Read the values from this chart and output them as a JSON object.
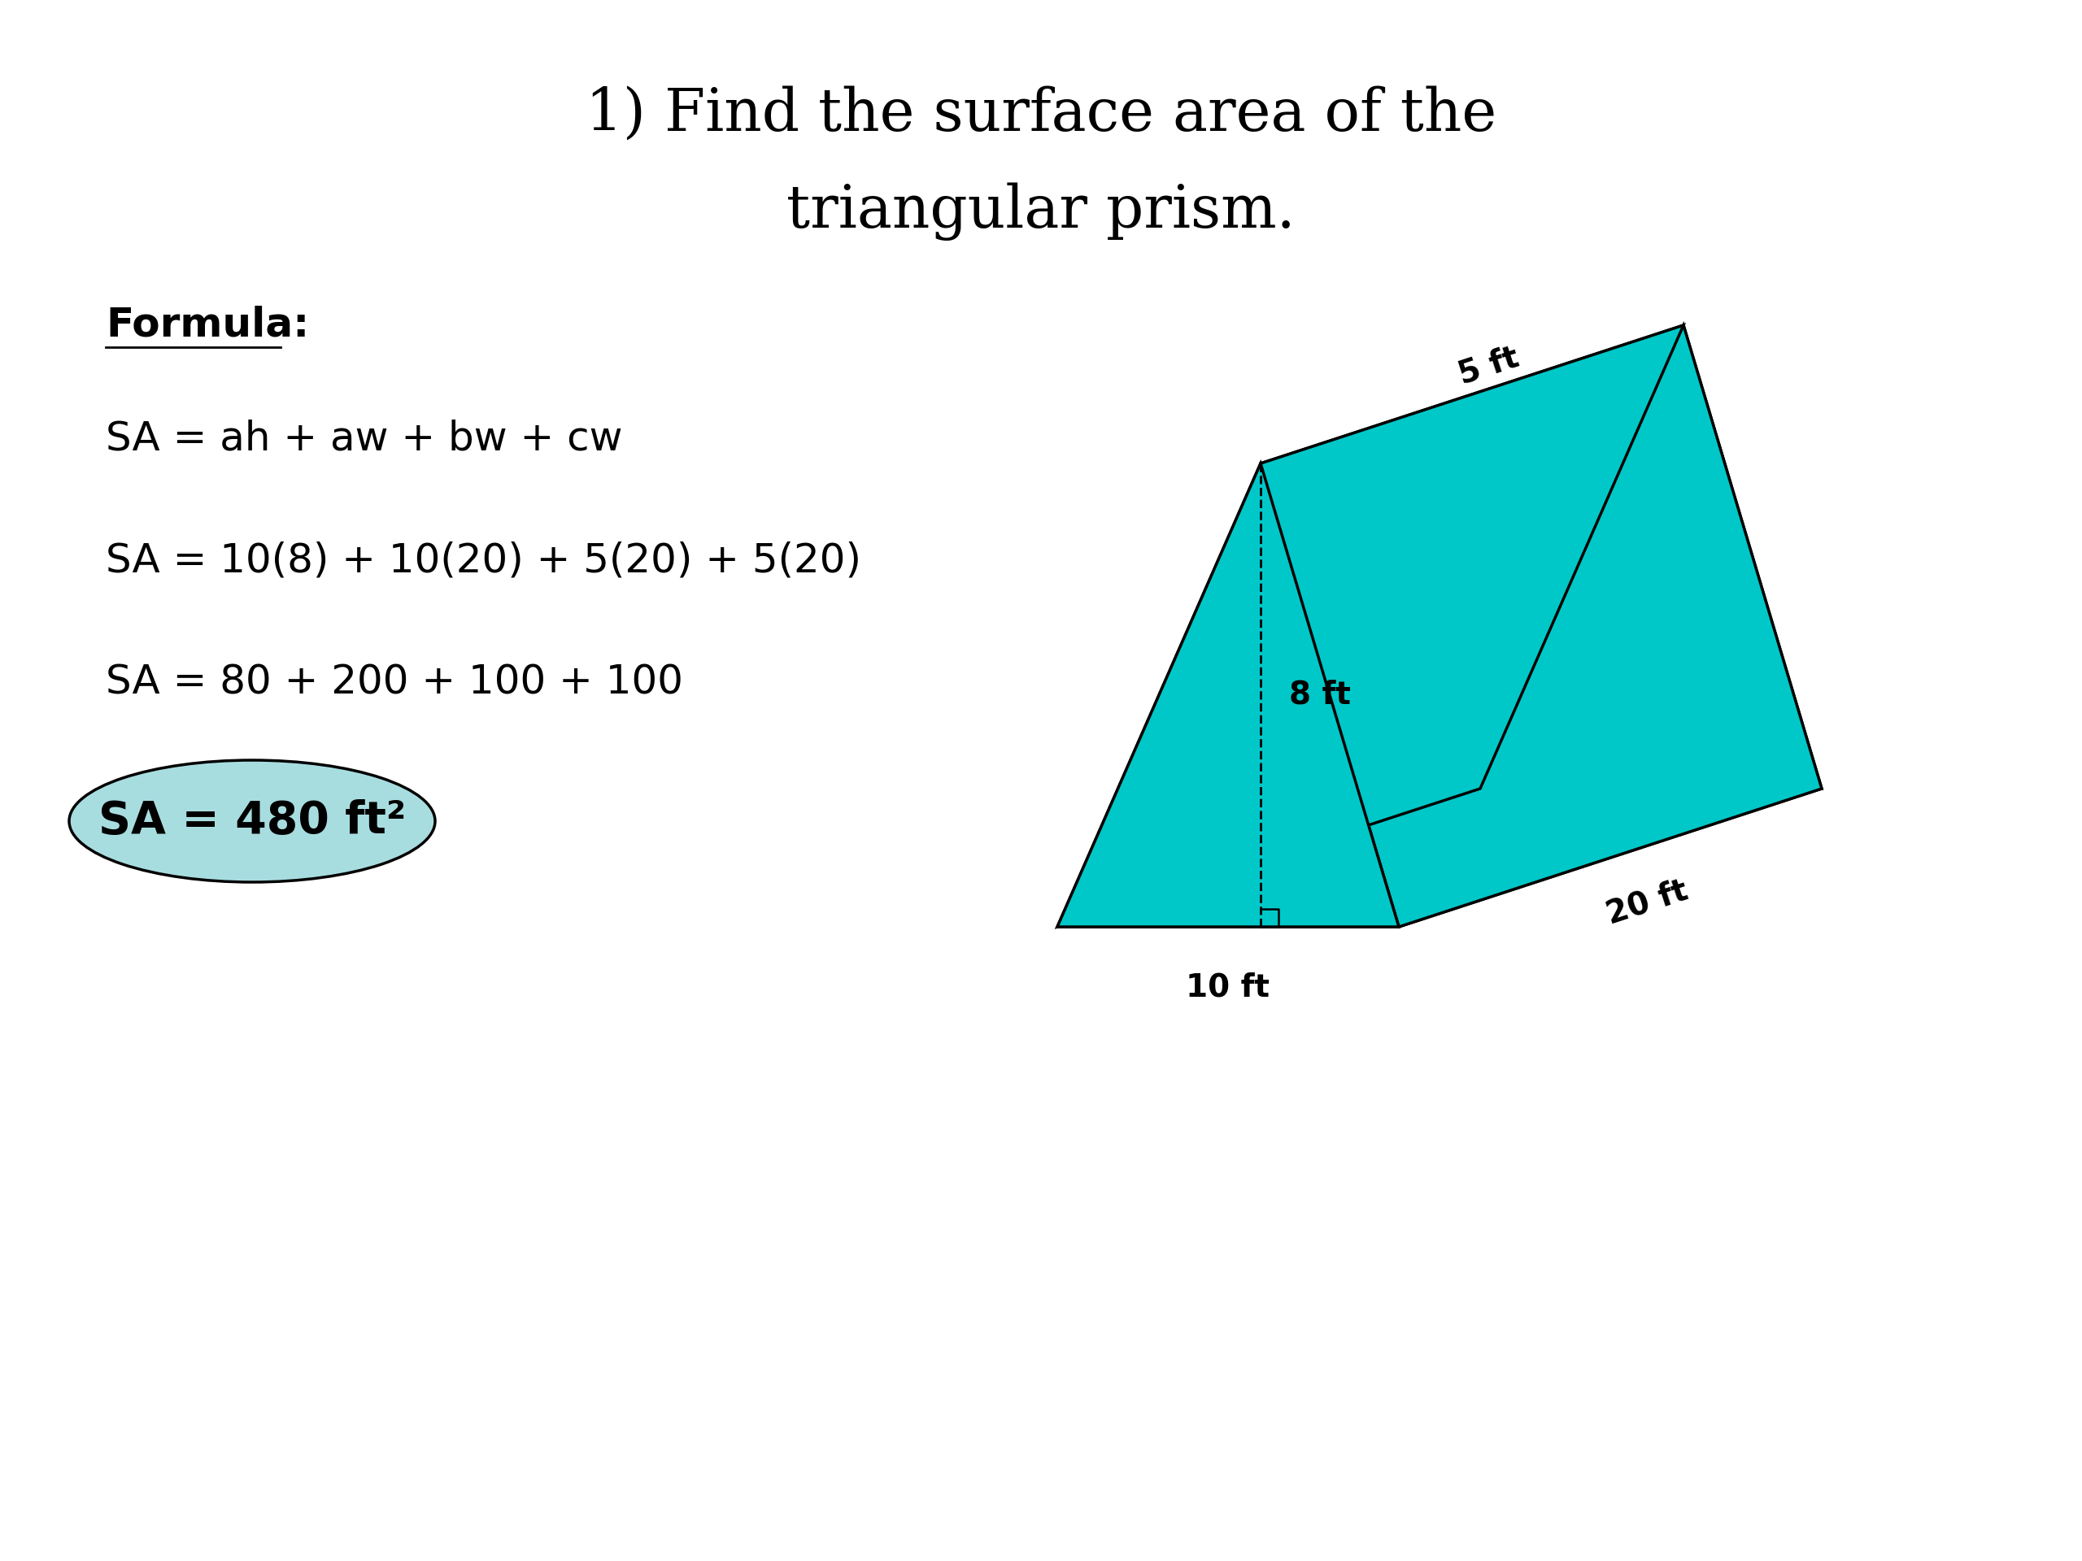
{
  "title_line1": "1) Find the surface area of the",
  "title_line2": "triangular prism.",
  "title_fontsize": 52,
  "formula_label": "Formula:",
  "formula_eq": "SA = ah + aw + bw + cw",
  "step1": "SA = 10(8) + 10(20) + 5(20) + 5(20)",
  "step2": "SA = 80 + 200 + 100 + 100",
  "answer": "SA = 480 ft²",
  "text_fontsize": 36,
  "answer_fontsize": 40,
  "bg_color": "#ffffff",
  "text_color": "#000000",
  "prism_color": "#00c8c8",
  "prism_edge_color": "#000000",
  "label_5ft": "5 ft",
  "label_8ft": "8 ft",
  "label_10ft": "10 ft",
  "label_20ft": "20 ft",
  "dim_fontsize": 28,
  "ellipse_color": "#a8dde0"
}
